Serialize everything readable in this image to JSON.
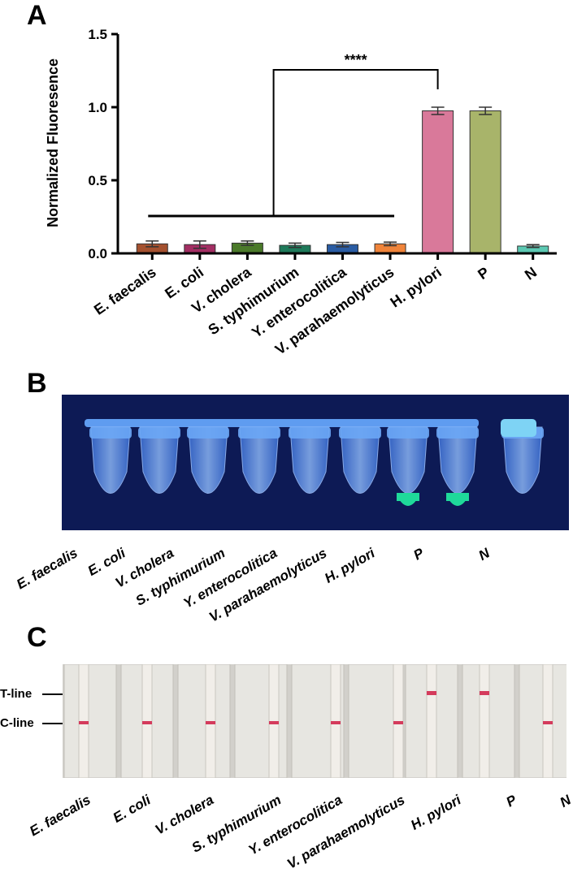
{
  "panels": {
    "a": "A",
    "b": "B",
    "c": "C"
  },
  "chart_data": {
    "type": "bar",
    "ylabel": "Normalized Fluoresence",
    "ylim": [
      0,
      1.5
    ],
    "yticks": [
      "0.0",
      "0.5",
      "1.0",
      "1.5"
    ],
    "categories": [
      "E. faecalis",
      "E. coli",
      "V. cholera",
      "S. typhimurium",
      "Y. enterocolitica",
      "V. parahaemolyticus",
      "H. pylori",
      "P",
      "N"
    ],
    "values": [
      0.065,
      0.06,
      0.07,
      0.055,
      0.06,
      0.065,
      0.975,
      0.975,
      0.05
    ],
    "errors": [
      0.02,
      0.025,
      0.015,
      0.015,
      0.015,
      0.012,
      0.025,
      0.025,
      0.01
    ],
    "colors": [
      "#a4512f",
      "#a32e63",
      "#4b7a2a",
      "#1e7a5a",
      "#2a5ca3",
      "#f0843a",
      "#d9799a",
      "#a8b46a",
      "#5cc9b3"
    ],
    "significance": "****"
  },
  "tube_photo": {
    "labels": [
      "E. faecalis",
      "E. coli",
      "V. cholera",
      "S. typhimurium",
      "Y. enterocolitica",
      "V. parahaemolyticus",
      "H. pylori",
      "P",
      "N"
    ],
    "positive": [
      false,
      false,
      false,
      false,
      false,
      false,
      true,
      true,
      false
    ]
  },
  "strip_photo": {
    "t_line_label": "T-line",
    "c_line_label": "C-line",
    "labels": [
      "E. faecalis",
      "E. coli",
      "V. cholera",
      "S. typhimurium",
      "Y. enterocolitica",
      "V. parahaemolyticus",
      "H. pylori",
      "P",
      "N"
    ],
    "t_line_present": [
      false,
      false,
      false,
      false,
      false,
      false,
      true,
      true,
      false
    ],
    "c_line_present": [
      true,
      true,
      true,
      true,
      true,
      true,
      false,
      false,
      true
    ]
  }
}
